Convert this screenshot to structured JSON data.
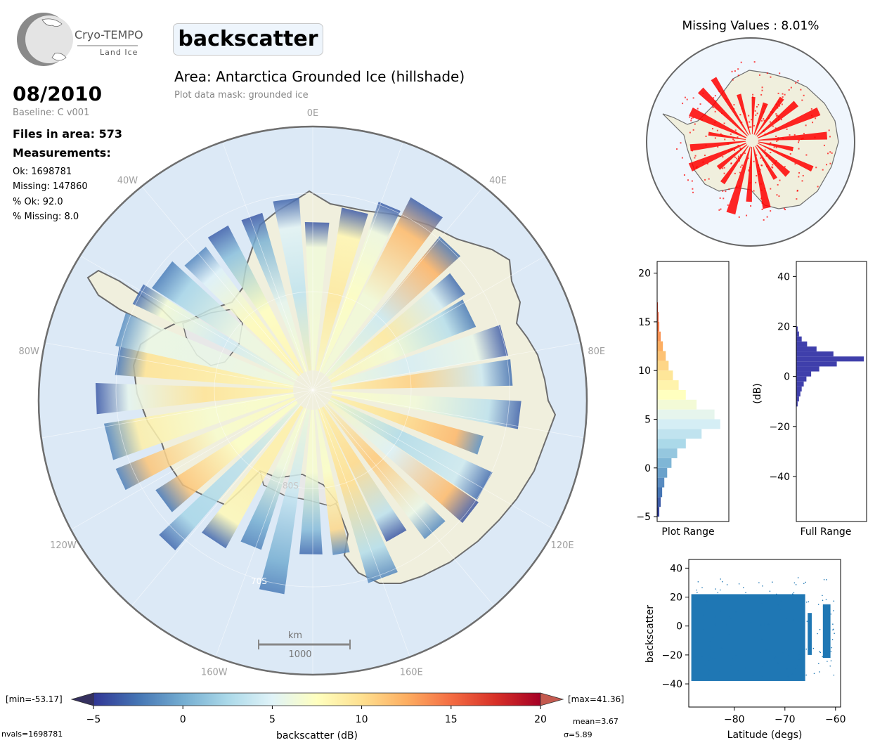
{
  "logo": {
    "name": "Cryo-TEMPO",
    "sub": "Land Ice"
  },
  "variable": "backscatter",
  "title": "Area: Antarctica Grounded Ice (hillshade)",
  "mask_note": "Plot data mask: grounded ice",
  "date": "08/2010",
  "baseline": "Baseline: C v001",
  "files": "Files in area: 573",
  "measurements_label": "Measurements:",
  "stats": [
    "Ok: 1698781",
    "Missing: 147860",
    "% Ok: 92.0",
    "% Missing: 8.0"
  ],
  "missing_title": "Missing Values : 8.01%",
  "map": {
    "lon_labels": [
      "0E",
      "40E",
      "80E",
      "120E",
      "160E",
      "160W",
      "120W",
      "80W",
      "40W"
    ],
    "lat_labels": [
      "80S",
      "70S"
    ],
    "scale_unit": "km",
    "scale_value": "1000",
    "colors": {
      "ocean": "#dce9f6",
      "land": "#f0efdd",
      "coast": "#6e6e6e",
      "shelf": "#e8e8e8"
    }
  },
  "colorbar": {
    "label": "backscatter (dB)",
    "ticks": [
      "-5",
      "0",
      "5",
      "10",
      "15",
      "20"
    ],
    "range": [
      -5,
      20
    ],
    "colormap": "RdYlBu_r",
    "min_label": "[min=-53.17]",
    "max_label": "[max=41.36]"
  },
  "footer": {
    "nvals": "nvals=1698781",
    "mean": "mean=3.67",
    "sigma": "σ=5.89"
  },
  "chart_data": [
    {
      "type": "bar",
      "orientation": "horizontal",
      "xlabel": "Plot Range",
      "yticks": [
        "-5",
        "0",
        "5",
        "10",
        "15",
        "20"
      ],
      "ylim": [
        -5.5,
        21.2
      ],
      "colormap": "RdYlBu_r",
      "bins": [
        -5,
        -4,
        -3,
        -2,
        -1,
        0,
        1,
        2,
        3,
        4,
        5,
        6,
        7,
        8,
        9,
        10,
        11,
        12,
        13,
        14,
        15,
        16
      ],
      "values": [
        0.03,
        0.05,
        0.07,
        0.1,
        0.14,
        0.2,
        0.28,
        0.4,
        0.62,
        0.88,
        0.8,
        0.55,
        0.4,
        0.3,
        0.22,
        0.16,
        0.12,
        0.08,
        0.05,
        0.03,
        0.02,
        0.01
      ]
    },
    {
      "type": "bar",
      "orientation": "horizontal",
      "xlabel": "Full Range",
      "ylabel": "(dB)",
      "yticks": [
        "40",
        "20",
        "0",
        "-20",
        "-40"
      ],
      "ylim": [
        -58,
        46
      ],
      "color": "#3f3fab",
      "bins": [
        -12,
        -10,
        -8,
        -6,
        -4,
        -2,
        0,
        2,
        4,
        6,
        8,
        10,
        12,
        14,
        16,
        18
      ],
      "values": [
        0.02,
        0.04,
        0.06,
        0.08,
        0.11,
        0.15,
        0.22,
        0.34,
        0.6,
        1.0,
        0.55,
        0.3,
        0.16,
        0.08,
        0.04,
        0.02
      ]
    },
    {
      "type": "scatter",
      "xlabel": "Latitude (degs)",
      "ylabel": "backscatter",
      "xticks": [
        "−80",
        "−70",
        "−60"
      ],
      "yticks": [
        "40",
        "20",
        "0",
        "−20",
        "−40"
      ],
      "xlim": [
        -89,
        -59
      ],
      "ylim": [
        -56,
        46
      ],
      "color": "#1f77b4",
      "bands": [
        {
          "x0": -88.5,
          "x1": -66,
          "ymin": -38,
          "ymax": 22
        },
        {
          "x0": -65.5,
          "x1": -64.7,
          "ymin": -20,
          "ymax": 9
        },
        {
          "x0": -62.5,
          "x1": -61,
          "ymin": -22,
          "ymax": 15
        }
      ]
    }
  ]
}
